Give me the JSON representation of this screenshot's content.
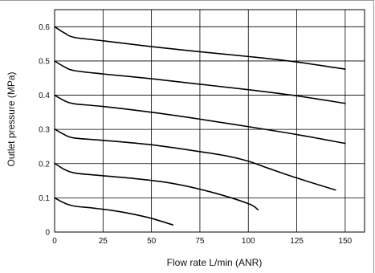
{
  "chart_data": {
    "type": "line",
    "title": "",
    "xlabel": "Flow rate L/min (ANR)",
    "ylabel": "Outlet pressure (MPa)",
    "xlim": [
      0,
      160
    ],
    "ylim": [
      0,
      0.65
    ],
    "x_ticks": [
      "0",
      "25",
      "50",
      "75",
      "100",
      "125",
      "150"
    ],
    "y_ticks": [
      "0",
      "0.1",
      "0.2",
      "0.3",
      "0.4",
      "0.5",
      "0.6"
    ],
    "x_tick_values": [
      0,
      25,
      50,
      75,
      100,
      125,
      150
    ],
    "y_tick_values": [
      0,
      0.1,
      0.2,
      0.3,
      0.4,
      0.5,
      0.6
    ],
    "grid": true,
    "line_color": "#000000",
    "series": [
      {
        "points": [
          [
            0,
            0.1
          ],
          [
            5,
            0.085
          ],
          [
            10,
            0.076
          ],
          [
            20,
            0.07
          ],
          [
            30,
            0.063
          ],
          [
            40,
            0.053
          ],
          [
            50,
            0.04
          ],
          [
            61,
            0.021
          ]
        ]
      },
      {
        "points": [
          [
            0,
            0.201
          ],
          [
            5,
            0.183
          ],
          [
            10,
            0.173
          ],
          [
            20,
            0.167
          ],
          [
            40,
            0.157
          ],
          [
            60,
            0.143
          ],
          [
            80,
            0.118
          ],
          [
            100,
            0.083
          ],
          [
            105,
            0.065
          ]
        ]
      },
      {
        "points": [
          [
            0,
            0.301
          ],
          [
            5,
            0.285
          ],
          [
            10,
            0.275
          ],
          [
            25,
            0.268
          ],
          [
            50,
            0.255
          ],
          [
            75,
            0.235
          ],
          [
            90,
            0.221
          ],
          [
            100,
            0.207
          ],
          [
            110,
            0.187
          ],
          [
            125,
            0.158
          ],
          [
            145,
            0.123
          ]
        ]
      },
      {
        "points": [
          [
            0,
            0.4
          ],
          [
            5,
            0.384
          ],
          [
            10,
            0.375
          ],
          [
            25,
            0.367
          ],
          [
            50,
            0.35
          ],
          [
            75,
            0.33
          ],
          [
            100,
            0.308
          ],
          [
            125,
            0.285
          ],
          [
            150,
            0.259
          ]
        ]
      },
      {
        "points": [
          [
            0,
            0.5
          ],
          [
            5,
            0.483
          ],
          [
            10,
            0.472
          ],
          [
            25,
            0.462
          ],
          [
            50,
            0.448
          ],
          [
            75,
            0.432
          ],
          [
            100,
            0.416
          ],
          [
            125,
            0.398
          ],
          [
            150,
            0.376
          ]
        ]
      },
      {
        "points": [
          [
            0,
            0.6
          ],
          [
            5,
            0.582
          ],
          [
            10,
            0.569
          ],
          [
            25,
            0.559
          ],
          [
            50,
            0.542
          ],
          [
            75,
            0.527
          ],
          [
            100,
            0.513
          ],
          [
            125,
            0.497
          ],
          [
            150,
            0.476
          ]
        ]
      }
    ]
  }
}
